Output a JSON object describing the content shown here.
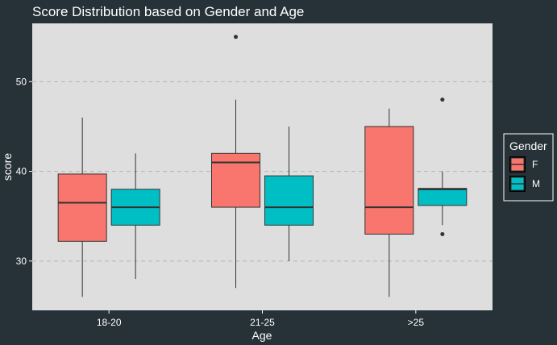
{
  "chart_data": {
    "type": "boxplot",
    "title": "Score Distribution based on Gender and Age",
    "xlabel": "Age",
    "ylabel": "score",
    "categories": [
      "18-20",
      "21-25",
      ">25"
    ],
    "ylim": [
      24.5,
      56.5
    ],
    "yticks": [
      30,
      40,
      50
    ],
    "grid": "horizontal-dashed",
    "legend": {
      "title": "Gender",
      "placement": "right",
      "entries": [
        "F",
        "M"
      ]
    },
    "series": [
      {
        "name": "F",
        "color": "#F8766D",
        "boxes": [
          {
            "category": "18-20",
            "min": 26,
            "q1": 32.2,
            "median": 36.5,
            "q3": 39.7,
            "max": 46,
            "outliers": []
          },
          {
            "category": "21-25",
            "min": 27,
            "q1": 36,
            "median": 41,
            "q3": 42,
            "max": 48,
            "outliers": [
              55
            ]
          },
          {
            "category": ">25",
            "min": 26,
            "q1": 33,
            "median": 36,
            "q3": 45,
            "max": 47,
            "outliers": []
          }
        ]
      },
      {
        "name": "M",
        "color": "#00BFC4",
        "boxes": [
          {
            "category": "18-20",
            "min": 28,
            "q1": 34,
            "median": 36,
            "q3": 38,
            "max": 42,
            "outliers": []
          },
          {
            "category": "21-25",
            "min": 30,
            "q1": 34,
            "median": 36,
            "q3": 39.5,
            "max": 45,
            "outliers": []
          },
          {
            "category": ">25",
            "min": 34,
            "q1": 36.2,
            "median": 38,
            "q3": 38.1,
            "max": 40,
            "outliers": [
              48,
              33
            ]
          }
        ]
      }
    ]
  }
}
